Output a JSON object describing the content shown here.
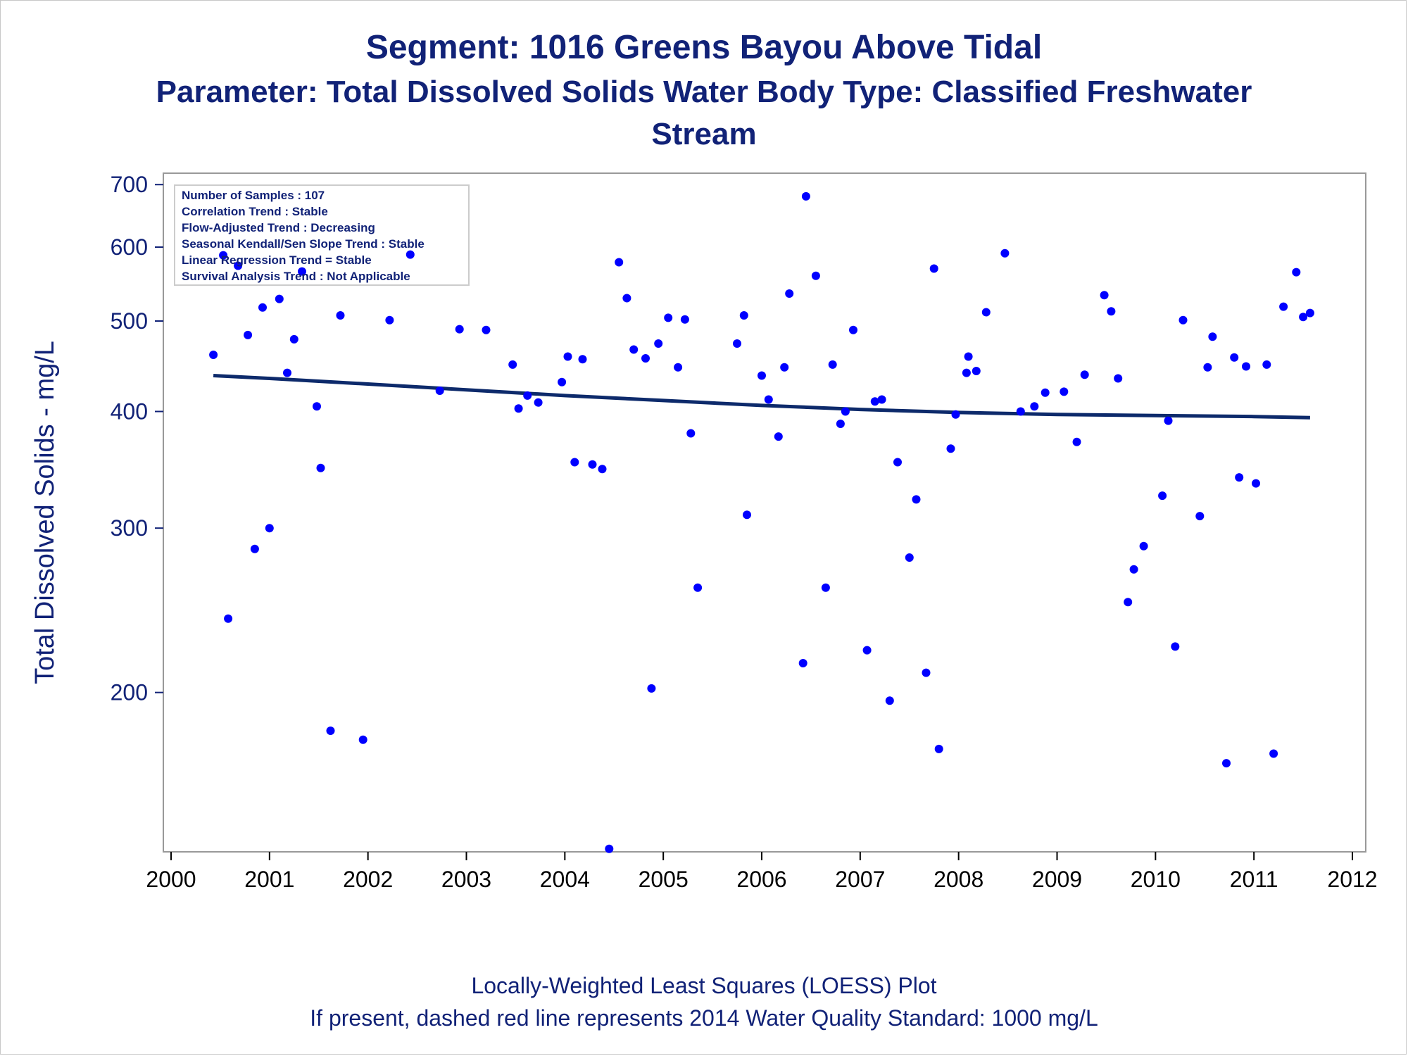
{
  "title": "Segment: 1016  Greens Bayou Above Tidal",
  "subtitle_line1": "Parameter: Total Dissolved Solids   Water Body Type: Classified Freshwater",
  "subtitle_line2": "Stream",
  "footnote1": "Locally-Weighted Least Squares (LOESS) Plot",
  "footnote2": "If present, dashed red line represents 2014 Water Quality Standard: 1000  mg/L",
  "inset": [
    "Number of Samples : 107",
    "Correlation Trend : Stable",
    "Flow-Adjusted Trend : Decreasing",
    "Seasonal Kendall/Sen Slope Trend : Stable",
    "Linear Regression Trend = Stable",
    "Survival Analysis Trend : Not Applicable"
  ],
  "colors": {
    "text": "#112277",
    "points": "#0000ff",
    "loess": "#0d2a6b",
    "axis": "#999999"
  },
  "chart_data": {
    "type": "scatter",
    "ylabel": "Total Dissolved Solids - mg/L",
    "xlabel": "",
    "yscale": "log",
    "xlim": [
      2000,
      2012
    ],
    "ylim": [
      135,
      720
    ],
    "xticks": [
      2000,
      2001,
      2002,
      2003,
      2004,
      2005,
      2006,
      2007,
      2008,
      2009,
      2010,
      2011,
      2012
    ],
    "yticks": [
      200,
      300,
      400,
      500,
      600,
      700
    ],
    "points": [
      [
        2000.43,
        460
      ],
      [
        2000.53,
        588
      ],
      [
        2000.58,
        240
      ],
      [
        2000.68,
        573
      ],
      [
        2000.78,
        483
      ],
      [
        2000.85,
        285
      ],
      [
        2000.93,
        517
      ],
      [
        2001.0,
        300
      ],
      [
        2001.1,
        528
      ],
      [
        2001.18,
        440
      ],
      [
        2001.25,
        478
      ],
      [
        2001.33,
        565
      ],
      [
        2001.48,
        405
      ],
      [
        2001.52,
        348
      ],
      [
        2001.62,
        182
      ],
      [
        2001.72,
        507
      ],
      [
        2001.95,
        178
      ],
      [
        2002.22,
        501
      ],
      [
        2002.43,
        589
      ],
      [
        2002.73,
        421
      ],
      [
        2002.93,
        490
      ],
      [
        2003.2,
        489
      ],
      [
        2003.47,
        449
      ],
      [
        2003.53,
        403
      ],
      [
        2003.62,
        416
      ],
      [
        2003.73,
        409
      ],
      [
        2003.97,
        430
      ],
      [
        2004.03,
        458
      ],
      [
        2004.1,
        353
      ],
      [
        2004.18,
        455
      ],
      [
        2004.28,
        351
      ],
      [
        2004.38,
        347
      ],
      [
        2004.45,
        136
      ],
      [
        2004.55,
        578
      ],
      [
        2004.63,
        529
      ],
      [
        2004.7,
        466
      ],
      [
        2004.82,
        456
      ],
      [
        2004.88,
        202
      ],
      [
        2004.95,
        473
      ],
      [
        2005.05,
        504
      ],
      [
        2005.15,
        446
      ],
      [
        2005.22,
        502
      ],
      [
        2005.28,
        379
      ],
      [
        2005.35,
        259
      ],
      [
        2005.75,
        473
      ],
      [
        2005.82,
        507
      ],
      [
        2005.85,
        310
      ],
      [
        2006.0,
        437
      ],
      [
        2006.07,
        412
      ],
      [
        2006.17,
        376
      ],
      [
        2006.23,
        446
      ],
      [
        2006.28,
        535
      ],
      [
        2006.42,
        215
      ],
      [
        2006.45,
        680
      ],
      [
        2006.55,
        559
      ],
      [
        2006.65,
        259
      ],
      [
        2006.72,
        449
      ],
      [
        2006.8,
        388
      ],
      [
        2006.85,
        400
      ],
      [
        2006.93,
        489
      ],
      [
        2007.07,
        222
      ],
      [
        2007.15,
        410
      ],
      [
        2007.22,
        412
      ],
      [
        2007.3,
        196
      ],
      [
        2007.38,
        353
      ],
      [
        2007.5,
        279
      ],
      [
        2007.57,
        322
      ],
      [
        2007.67,
        210
      ],
      [
        2007.75,
        569
      ],
      [
        2007.8,
        174
      ],
      [
        2007.92,
        365
      ],
      [
        2007.97,
        397
      ],
      [
        2008.08,
        440
      ],
      [
        2008.1,
        458
      ],
      [
        2008.18,
        442
      ],
      [
        2008.28,
        511
      ],
      [
        2008.47,
        591
      ],
      [
        2008.63,
        400
      ],
      [
        2008.77,
        405
      ],
      [
        2008.88,
        419
      ],
      [
        2009.07,
        420
      ],
      [
        2009.2,
        371
      ],
      [
        2009.28,
        438
      ],
      [
        2009.48,
        533
      ],
      [
        2009.55,
        512
      ],
      [
        2009.62,
        434
      ],
      [
        2009.72,
        250
      ],
      [
        2009.78,
        271
      ],
      [
        2009.88,
        287
      ],
      [
        2010.07,
        325
      ],
      [
        2010.13,
        391
      ],
      [
        2010.2,
        224
      ],
      [
        2010.28,
        501
      ],
      [
        2010.45,
        309
      ],
      [
        2010.53,
        446
      ],
      [
        2010.58,
        481
      ],
      [
        2010.72,
        168
      ],
      [
        2010.8,
        457
      ],
      [
        2010.85,
        340
      ],
      [
        2010.92,
        447
      ],
      [
        2011.02,
        335
      ],
      [
        2011.13,
        449
      ],
      [
        2011.2,
        172
      ],
      [
        2011.3,
        518
      ],
      [
        2011.43,
        564
      ],
      [
        2011.5,
        505
      ],
      [
        2011.57,
        510
      ]
    ],
    "loess": [
      [
        2000.43,
        437
      ],
      [
        2001.0,
        434
      ],
      [
        2002.0,
        428
      ],
      [
        2003.0,
        422
      ],
      [
        2004.0,
        416
      ],
      [
        2005.0,
        411
      ],
      [
        2006.0,
        406
      ],
      [
        2007.0,
        402
      ],
      [
        2008.0,
        399
      ],
      [
        2009.0,
        397
      ],
      [
        2010.0,
        396
      ],
      [
        2011.0,
        395
      ],
      [
        2011.57,
        394
      ]
    ]
  }
}
